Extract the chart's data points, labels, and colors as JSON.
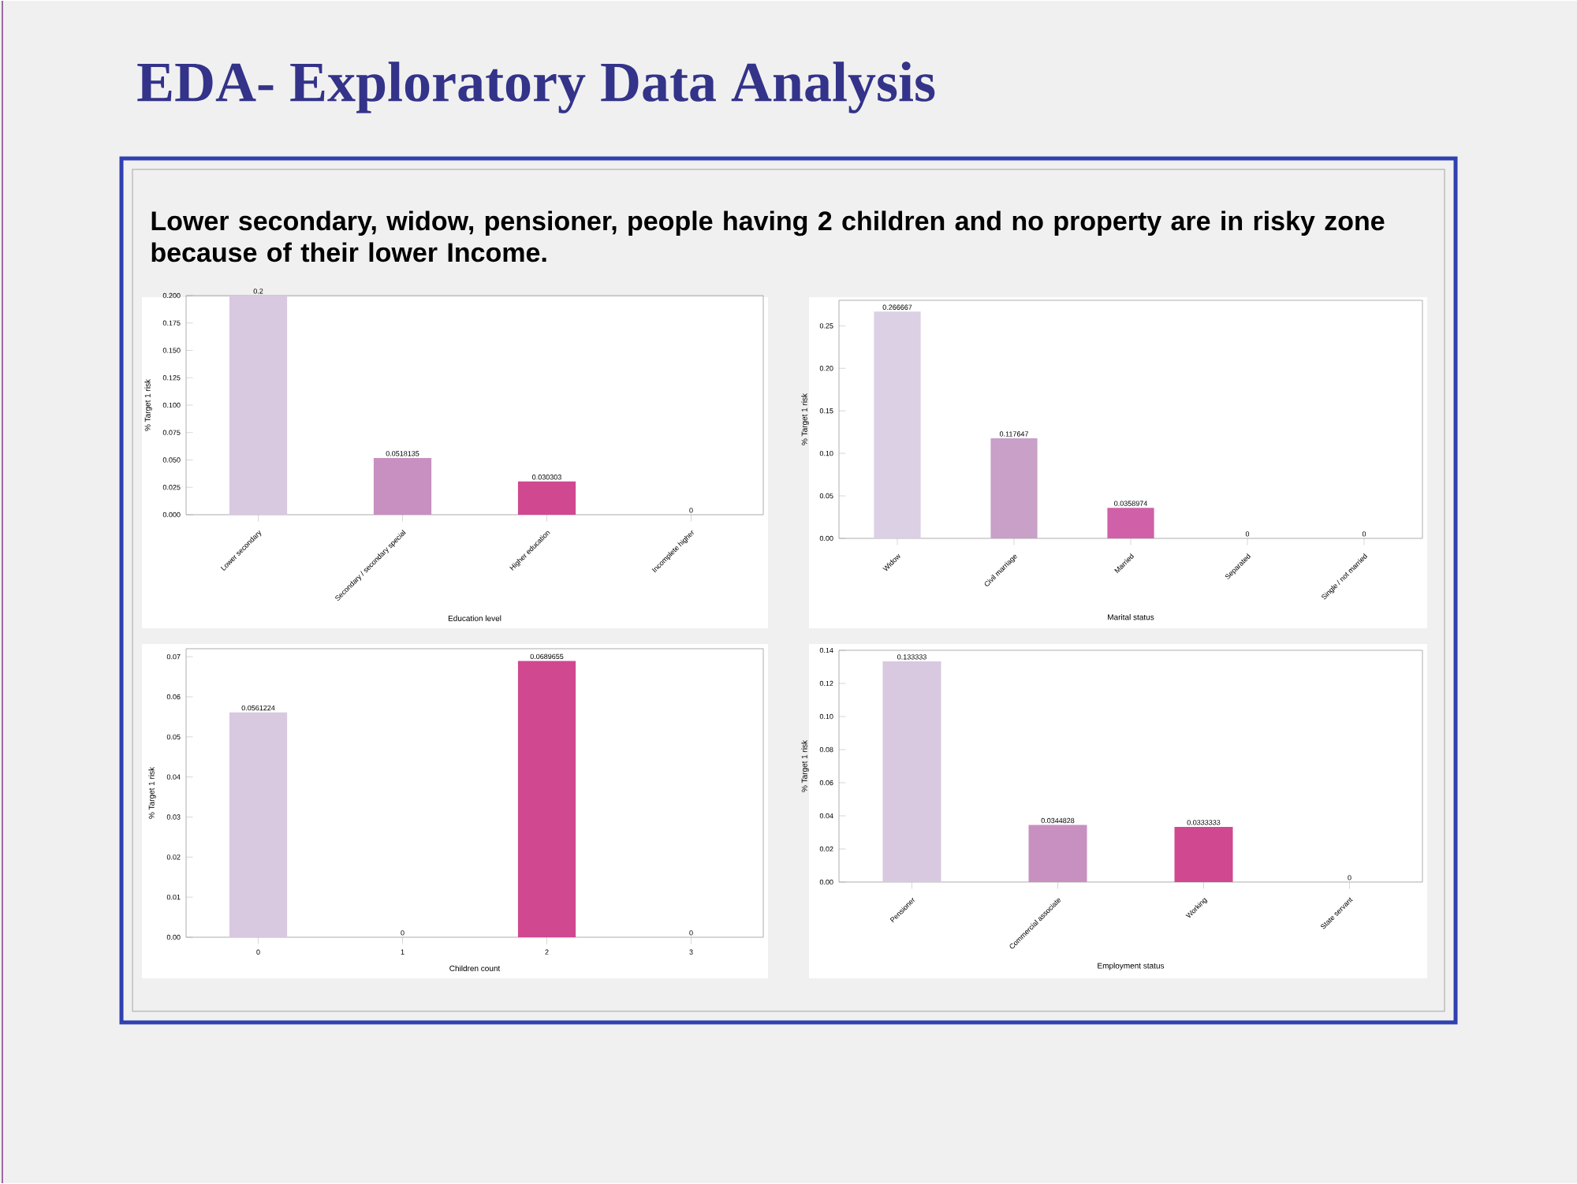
{
  "chart_data": [
    {
      "type": "bar",
      "title": "EDA- Exploratory Data Analysis",
      "subtitle": "Lower secondary, widow, pensioner, people having 2 children and no property are in risky zone because of their lower Income.",
      "xlabel": "Education level",
      "ylabel": "% Target 1 risk",
      "categories": [
        "Lower secondary",
        "Secondary / secondary special",
        "Higher education",
        "Incomplete higher"
      ],
      "values": [
        0.2,
        0.0518135,
        0.030303,
        0
      ],
      "colors": [
        "#d8c8e0",
        "#c890c0",
        "#d04890",
        "#d04890"
      ],
      "data_labels": true,
      "ylim": [
        0,
        0.2
      ],
      "yticks": [
        {
          "value": 0,
          "label": "0.000"
        },
        {
          "value": 0.025,
          "label": "0.025"
        },
        {
          "value": 0.05,
          "label": "0.050"
        },
        {
          "value": 0.075,
          "label": "0.075"
        },
        {
          "value": 0.1,
          "label": "0.100"
        },
        {
          "value": 0.125,
          "label": "0.125"
        },
        {
          "value": 0.15,
          "label": "0.150"
        },
        {
          "value": 0.175,
          "label": "0.175"
        },
        {
          "value": 0.2,
          "label": "0.200"
        }
      ]
    },
    {
      "type": "bar",
      "xlabel": "Marital status",
      "ylabel": "% Target 1 risk",
      "categories": [
        "Widow",
        "Civil marriage",
        "Married",
        "Separated",
        "Single / not married"
      ],
      "values": [
        0.266667,
        0.117647,
        0.0358974,
        0,
        0
      ],
      "colors": [
        "#dcd0e4",
        "#c8a0c8",
        "#d060a8",
        "#d04890",
        "#d04890"
      ],
      "data_labels": true,
      "ylim": [
        0,
        0.28
      ],
      "yticks": [
        {
          "value": 0,
          "label": "0.00"
        },
        {
          "value": 0.05,
          "label": "0.05"
        },
        {
          "value": 0.1,
          "label": "0.10"
        },
        {
          "value": 0.15,
          "label": "0.15"
        },
        {
          "value": 0.2,
          "label": "0.20"
        },
        {
          "value": 0.25,
          "label": "0.25"
        }
      ]
    },
    {
      "type": "bar",
      "xlabel": "Children count",
      "ylabel": "% Target 1 risk",
      "categories": [
        "0",
        "1",
        "2",
        "3"
      ],
      "values": [
        0.0561224,
        0,
        0.0689655,
        0
      ],
      "colors": [
        "#d8c8e0",
        "#c890c0",
        "#d04890",
        "#d04890"
      ],
      "data_labels": true,
      "ylim": [
        0,
        0.072
      ],
      "yticks": [
        {
          "value": 0,
          "label": "0.00"
        },
        {
          "value": 0.01,
          "label": "0.01"
        },
        {
          "value": 0.02,
          "label": "0.02"
        },
        {
          "value": 0.03,
          "label": "0.03"
        },
        {
          "value": 0.04,
          "label": "0.04"
        },
        {
          "value": 0.05,
          "label": "0.05"
        },
        {
          "value": 0.06,
          "label": "0.06"
        },
        {
          "value": 0.07,
          "label": "0.07"
        }
      ]
    },
    {
      "type": "bar",
      "xlabel": "Employment status",
      "ylabel": "% Target 1 risk",
      "categories": [
        "Pensioner",
        "Commercial associate",
        "Working",
        "State servant"
      ],
      "values": [
        0.133333,
        0.0344828,
        0.0333333,
        0
      ],
      "colors": [
        "#d8c8e0",
        "#c890c0",
        "#d04890",
        "#d04890"
      ],
      "data_labels": true,
      "ylim": [
        0,
        0.14
      ],
      "yticks": [
        {
          "value": 0,
          "label": "0.00"
        },
        {
          "value": 0.02,
          "label": "0.02"
        },
        {
          "value": 0.04,
          "label": "0.04"
        },
        {
          "value": 0.06,
          "label": "0.06"
        },
        {
          "value": 0.08,
          "label": "0.08"
        },
        {
          "value": 0.1,
          "label": "0.10"
        },
        {
          "value": 0.12,
          "label": "0.12"
        },
        {
          "value": 0.14,
          "label": "0.14"
        }
      ]
    }
  ]
}
